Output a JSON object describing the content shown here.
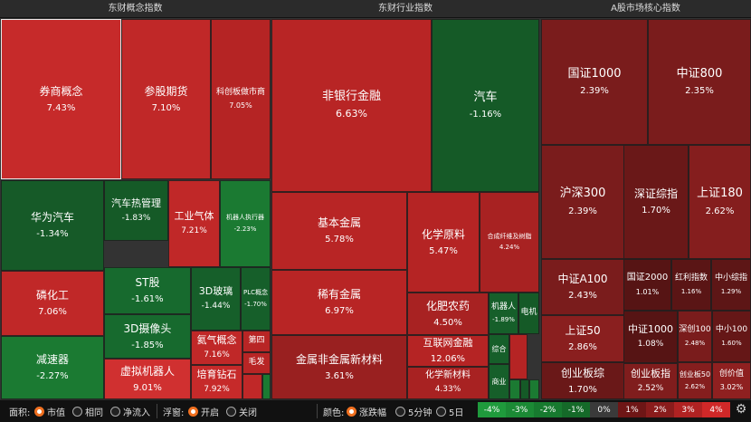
{
  "panels": [
    {
      "title": "东财概念指数",
      "cells": [
        {
          "name": "券商概念",
          "value": "7.43%",
          "color": "#c62a2a",
          "fn": 12,
          "fv": 10
        },
        {
          "name": "参股期货",
          "value": "7.10%",
          "color": "#c02828",
          "fn": 12,
          "fv": 10
        },
        {
          "name": "科创板做市商",
          "value": "7.05%",
          "color": "#b52424",
          "fn": 9,
          "fv": 8
        },
        {
          "name": "华为汽车",
          "value": "-1.34%",
          "color": "#165a28",
          "fn": 12,
          "fv": 10
        },
        {
          "name": "汽车热管理",
          "value": "-1.83%",
          "color": "#155a27",
          "fn": 11,
          "fv": 9
        },
        {
          "name": "工业气体",
          "value": "7.21%",
          "color": "#c02828",
          "fn": 11,
          "fv": 9
        },
        {
          "name": "机器人执行器",
          "value": "-2.23%",
          "color": "#1b7a32",
          "fn": 7,
          "fv": 7
        },
        {
          "name": "磷化工",
          "value": "7.06%",
          "color": "#c02828",
          "fn": 12,
          "fv": 10
        },
        {
          "name": "ST股",
          "value": "-1.61%",
          "color": "#176a2e",
          "fn": 12,
          "fv": 10
        },
        {
          "name": "3D玻璃",
          "value": "-1.44%",
          "color": "#165f2a",
          "fn": 11,
          "fv": 9
        },
        {
          "name": "PLC概念",
          "value": "-1.70%",
          "color": "#165f2a",
          "fn": 7,
          "fv": 7
        },
        {
          "name": "3D摄像头",
          "value": "-1.85%",
          "color": "#176a2e",
          "fn": 12,
          "fv": 10
        },
        {
          "name": "氦气概念",
          "value": "7.16%",
          "color": "#c02828",
          "fn": 11,
          "fv": 9
        },
        {
          "name": "第四",
          "value": "",
          "color": "#b82525",
          "fn": 9,
          "fv": 8
        },
        {
          "name": "毛发",
          "value": "",
          "color": "#b82525",
          "fn": 9,
          "fv": 8
        },
        {
          "name": "减速器",
          "value": "-2.27%",
          "color": "#1b7a32",
          "fn": 12,
          "fv": 10
        },
        {
          "name": "虚拟机器人",
          "value": "9.01%",
          "color": "#d03030",
          "fn": 12,
          "fv": 10
        },
        {
          "name": "培育钻石",
          "value": "7.92%",
          "color": "#c62a2a",
          "fn": 11,
          "fv": 9
        },
        {
          "name": "",
          "value": "",
          "color": "#c02828",
          "fn": 8,
          "fv": 8
        },
        {
          "name": "",
          "value": "",
          "color": "#1b7a32",
          "fn": 8,
          "fv": 8
        }
      ]
    },
    {
      "title": "东财行业指数",
      "cells": [
        {
          "name": "非银行金融",
          "value": "6.63%",
          "color": "#b82525",
          "fn": 13,
          "fv": 11
        },
        {
          "name": "汽车",
          "value": "-1.16%",
          "color": "#155a27",
          "fn": 13,
          "fv": 10
        },
        {
          "name": "基本金属",
          "value": "5.78%",
          "color": "#b82525",
          "fn": 12,
          "fv": 10
        },
        {
          "name": "化学原料",
          "value": "5.47%",
          "color": "#b52424",
          "fn": 12,
          "fv": 10
        },
        {
          "name": "合成纤维及树脂",
          "value": "4.24%",
          "color": "#a82222",
          "fn": 7,
          "fv": 7
        },
        {
          "name": "稀有金属",
          "value": "6.97%",
          "color": "#b82525",
          "fn": 12,
          "fv": 10
        },
        {
          "name": "化肥农药",
          "value": "4.50%",
          "color": "#a82222",
          "fn": 12,
          "fv": 10
        },
        {
          "name": "机器人",
          "value": "-1.89%",
          "color": "#165f2a",
          "fn": 9,
          "fv": 7
        },
        {
          "name": "电机",
          "value": "",
          "color": "#155a27",
          "fn": 9,
          "fv": 8
        },
        {
          "name": "互联网金融",
          "value": "12.06%",
          "color": "#b52424",
          "fn": 11,
          "fv": 10
        },
        {
          "name": "综合",
          "value": "",
          "color": "#165f2a",
          "fn": 8,
          "fv": 8
        },
        {
          "name": "",
          "value": "",
          "color": "#b52424",
          "fn": 8,
          "fv": 8
        },
        {
          "name": "金属非金属新材料",
          "value": "3.61%",
          "color": "#992020",
          "fn": 12,
          "fv": 10
        },
        {
          "name": "化学新材料",
          "value": "4.33%",
          "color": "#a82222",
          "fn": 10,
          "fv": 9
        },
        {
          "name": "商业",
          "value": "",
          "color": "#165f2a",
          "fn": 8,
          "fv": 8
        },
        {
          "name": "",
          "value": "",
          "color": "#1b7a32",
          "fn": 8,
          "fv": 8
        },
        {
          "name": "",
          "value": "",
          "color": "#155a27",
          "fn": 8,
          "fv": 8
        },
        {
          "name": "",
          "value": "",
          "color": "#1b7a32",
          "fn": 8,
          "fv": 8
        }
      ]
    },
    {
      "title": "A股市场核心指数",
      "cells": [
        {
          "name": "国证1000",
          "value": "2.39%",
          "color": "#7a1c1c",
          "fn": 13,
          "fv": 10
        },
        {
          "name": "中证800",
          "value": "2.35%",
          "color": "#7a1c1c",
          "fn": 13,
          "fv": 10
        },
        {
          "name": "沪深300",
          "value": "2.39%",
          "color": "#7a1c1c",
          "fn": 13,
          "fv": 10
        },
        {
          "name": "深证综指",
          "value": "1.70%",
          "color": "#6a1818",
          "fn": 12,
          "fv": 10
        },
        {
          "name": "上证180",
          "value": "2.62%",
          "color": "#851e1e",
          "fn": 13,
          "fv": 10
        },
        {
          "name": "中证A100",
          "value": "2.43%",
          "color": "#7a1c1c",
          "fn": 12,
          "fv": 10
        },
        {
          "name": "国证2000",
          "value": "1.01%",
          "color": "#561414",
          "fn": 10,
          "fv": 8
        },
        {
          "name": "红利指数",
          "value": "1.16%",
          "color": "#5a1515",
          "fn": 9,
          "fv": 7
        },
        {
          "name": "中小综指",
          "value": "1.29%",
          "color": "#5d1616",
          "fn": 9,
          "fv": 7
        },
        {
          "name": "上证50",
          "value": "2.86%",
          "color": "#8a1f1f",
          "fn": 12,
          "fv": 10
        },
        {
          "name": "中证1000",
          "value": "1.08%",
          "color": "#561414",
          "fn": 11,
          "fv": 9
        },
        {
          "name": "深创100",
          "value": "2.48%",
          "color": "#7a1c1c",
          "fn": 9,
          "fv": 7
        },
        {
          "name": "中小100",
          "value": "1.60%",
          "color": "#651717",
          "fn": 9,
          "fv": 7
        },
        {
          "name": "创业板综",
          "value": "1.70%",
          "color": "#6a1818",
          "fn": 12,
          "fv": 10
        },
        {
          "name": "创业板指",
          "value": "2.52%",
          "color": "#801d1d",
          "fn": 11,
          "fv": 9
        },
        {
          "name": "创业板50",
          "value": "2.62%",
          "color": "#851e1e",
          "fn": 8,
          "fv": 7
        },
        {
          "name": "创价值",
          "value": "3.02%",
          "color": "#8f2020",
          "fn": 9,
          "fv": 8
        }
      ]
    }
  ],
  "controls": {
    "area_label": "面积:",
    "area_options": [
      {
        "label": "市值",
        "on": true
      },
      {
        "label": "相同",
        "on": false
      },
      {
        "label": "净流入",
        "on": false
      }
    ],
    "float_label": "浮窗:",
    "float_options": [
      {
        "label": "开启",
        "on": true
      },
      {
        "label": "关闭",
        "on": false
      }
    ],
    "color_label": "颜色:",
    "color_options": [
      {
        "label": "涨跌幅",
        "on": true
      },
      {
        "label": "5分钟",
        "on": false
      },
      {
        "label": "5日",
        "on": false
      }
    ]
  },
  "legend": [
    {
      "label": "-4%",
      "color": "#1f9a3c"
    },
    {
      "label": "-3%",
      "color": "#1b8a35"
    },
    {
      "label": "-2%",
      "color": "#177a2f"
    },
    {
      "label": "-1%",
      "color": "#156a29"
    },
    {
      "label": "0%",
      "color": "#3a3a3a"
    },
    {
      "label": "1%",
      "color": "#6e1616"
    },
    {
      "label": "2%",
      "color": "#8a1c1c"
    },
    {
      "label": "3%",
      "color": "#b02222"
    },
    {
      "label": "4%",
      "color": "#d02828"
    }
  ],
  "settings_icon": "gear-icon"
}
